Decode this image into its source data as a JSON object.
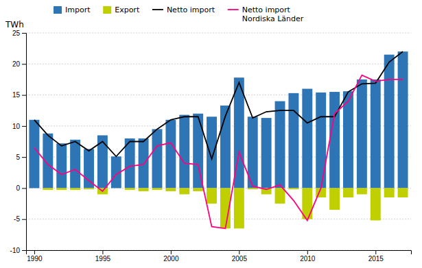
{
  "chart_data": {
    "type": "bar",
    "y_label": "TWh",
    "x": [
      1990,
      1991,
      1992,
      1993,
      1994,
      1995,
      1996,
      1997,
      1998,
      1999,
      2000,
      2001,
      2002,
      2003,
      2004,
      2005,
      2006,
      2007,
      2008,
      2009,
      2010,
      2011,
      2012,
      2013,
      2014,
      2015,
      2016,
      2017
    ],
    "series": [
      {
        "name": "Import",
        "type": "bar",
        "color": "#2e75b6",
        "values": [
          11.0,
          8.8,
          7.2,
          7.8,
          6.3,
          8.5,
          5.1,
          8.0,
          8.0,
          9.5,
          11.0,
          11.8,
          12.0,
          11.5,
          13.3,
          17.8,
          11.5,
          11.3,
          14.0,
          15.3,
          16.0,
          15.4,
          15.5,
          15.6,
          17.5,
          17.5,
          21.5,
          22.0
        ]
      },
      {
        "name": "Export",
        "type": "bar",
        "color": "#bfcf00",
        "values": [
          0.0,
          -0.3,
          -0.3,
          -0.3,
          -0.2,
          -1.0,
          0.0,
          -0.3,
          -0.5,
          -0.3,
          -0.5,
          -1.0,
          -0.5,
          -2.5,
          -6.5,
          -6.5,
          -0.2,
          -1.0,
          -2.5,
          -0.2,
          -5.0,
          -1.5,
          -3.5,
          -1.5,
          -1.0,
          -5.2,
          -1.5,
          -1.5
        ]
      },
      {
        "name": "Netto import",
        "type": "line",
        "color": "#000000",
        "values": [
          11.0,
          8.5,
          6.8,
          7.5,
          6.0,
          7.5,
          5.1,
          7.5,
          7.5,
          9.5,
          11.0,
          11.5,
          11.5,
          4.7,
          11.6,
          17.0,
          11.3,
          12.3,
          12.5,
          12.5,
          10.5,
          11.5,
          11.5,
          15.5,
          16.8,
          16.9,
          20.3,
          22.0
        ]
      },
      {
        "name": "Netto import\nNordiska Länder",
        "type": "line",
        "color": "#ff007f",
        "values": [
          6.5,
          3.8,
          2.2,
          3.0,
          1.2,
          -0.5,
          2.2,
          3.5,
          3.8,
          6.8,
          7.3,
          4.0,
          3.8,
          -6.2,
          -6.5,
          5.8,
          0.3,
          -0.2,
          0.5,
          -2.0,
          -5.2,
          0.0,
          12.0,
          14.0,
          18.2,
          17.2,
          17.5,
          17.5
        ]
      }
    ],
    "xlim": [
      1989.4,
      2017.6
    ],
    "xticks": [
      1990,
      1995,
      2000,
      2005,
      2010,
      2015
    ],
    "ylim": [
      -10,
      25
    ],
    "yticks": [
      -10,
      -5,
      0,
      5,
      10,
      15,
      20,
      25
    ],
    "grid": true,
    "legend": "top-left"
  }
}
